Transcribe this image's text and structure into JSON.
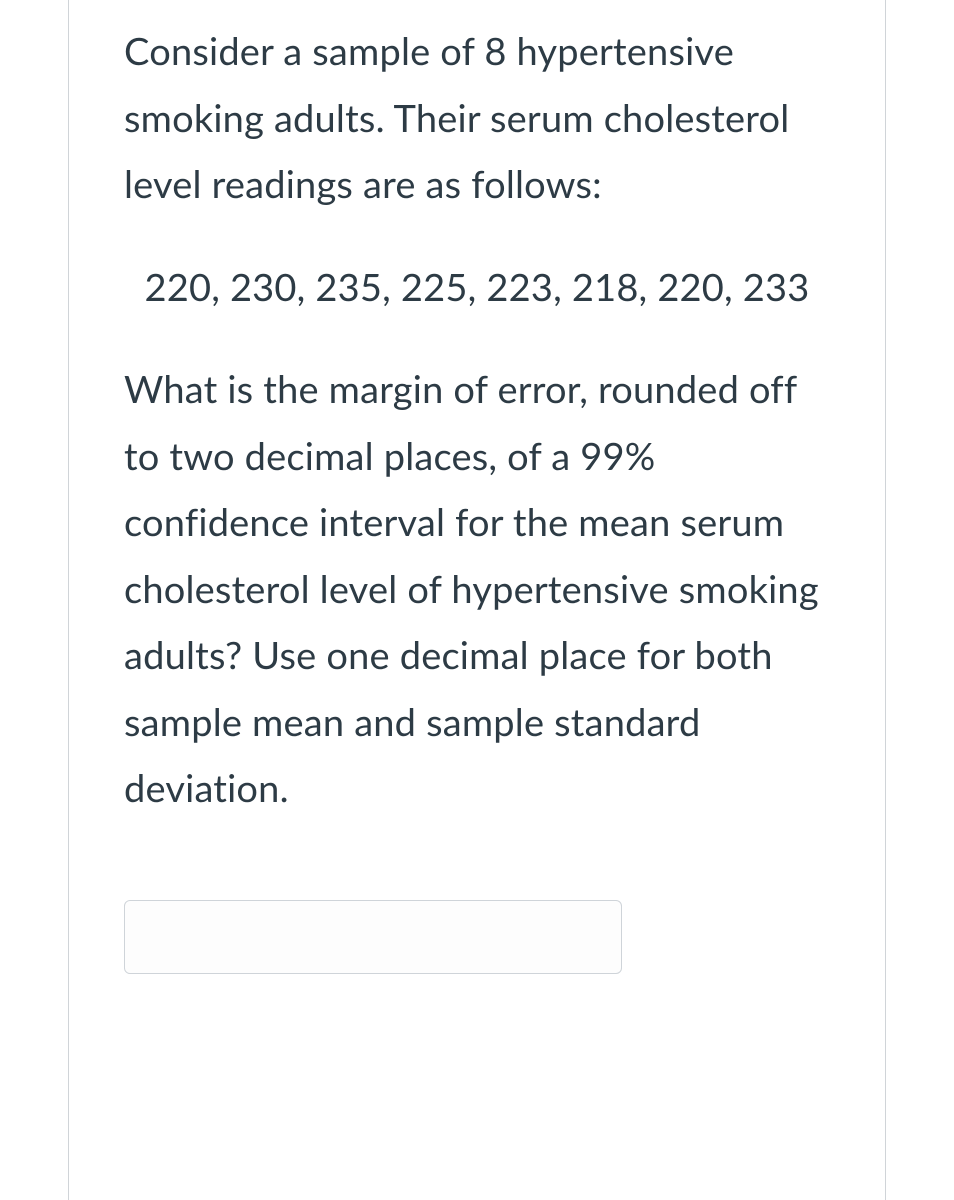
{
  "question": {
    "intro": "Consider a sample of 8 hypertensive smoking adults. Their serum cholesterol level readings are as follows:",
    "data_values": "220, 230, 235, 225, 223, 218, 220, 233",
    "prompt": "What is the margin of error, rounded off to two decimal places, of a 99% confidence interval for the mean serum cholesterol level of hypertensive smoking adults? Use one decimal place for both sample mean and sample standard deviation."
  },
  "answer": {
    "value": "",
    "placeholder": ""
  },
  "styles": {
    "text_color": "#2d3b45",
    "border_color": "#d0d4d8",
    "input_border_color": "#cfd4d9",
    "background_color": "#ffffff",
    "font_size_pt": 29,
    "line_height": 1.75
  }
}
